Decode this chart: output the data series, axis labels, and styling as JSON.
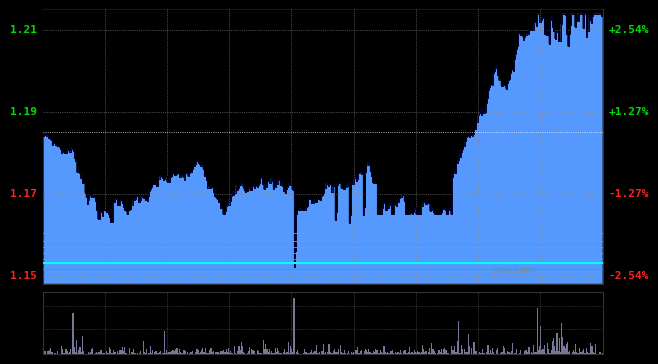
{
  "bg_color": "#000000",
  "plot_bg": "#000000",
  "fill_color": "#5599ff",
  "line_color": "#000033",
  "ref_line_color": "#ffffff",
  "y_min": 1.148,
  "y_max": 1.215,
  "ref_price": 1.185,
  "y_ticks_left": [
    1.21,
    1.19,
    1.17,
    1.15
  ],
  "y_ticks_right": [
    "+2.54%",
    "+1.27%",
    "-1.27%",
    "-2.54%"
  ],
  "y_ticks_right_colors": [
    "#00dd00",
    "#00dd00",
    "#ff2222",
    "#ff2222"
  ],
  "y_ticks_left_colors": [
    "#00dd00",
    "#00dd00",
    "#ff2222",
    "#ff2222"
  ],
  "num_points": 480,
  "watermark": "sina.com",
  "watermark_color": "#888888",
  "bottom_bar_color": "#777799",
  "hline_colors": [
    "#8888ff",
    "#8888ff",
    "#8888ff",
    "#8888ff",
    "#8888ff",
    "#00ffff",
    "#00cc77"
  ],
  "hline_vals": [
    1.1605,
    1.1585,
    1.157,
    1.1555,
    1.154,
    1.153,
    1.1515
  ],
  "hline_widths": [
    0.6,
    0.6,
    0.6,
    0.6,
    0.6,
    1.5,
    0.8
  ],
  "num_vgrid": 8
}
